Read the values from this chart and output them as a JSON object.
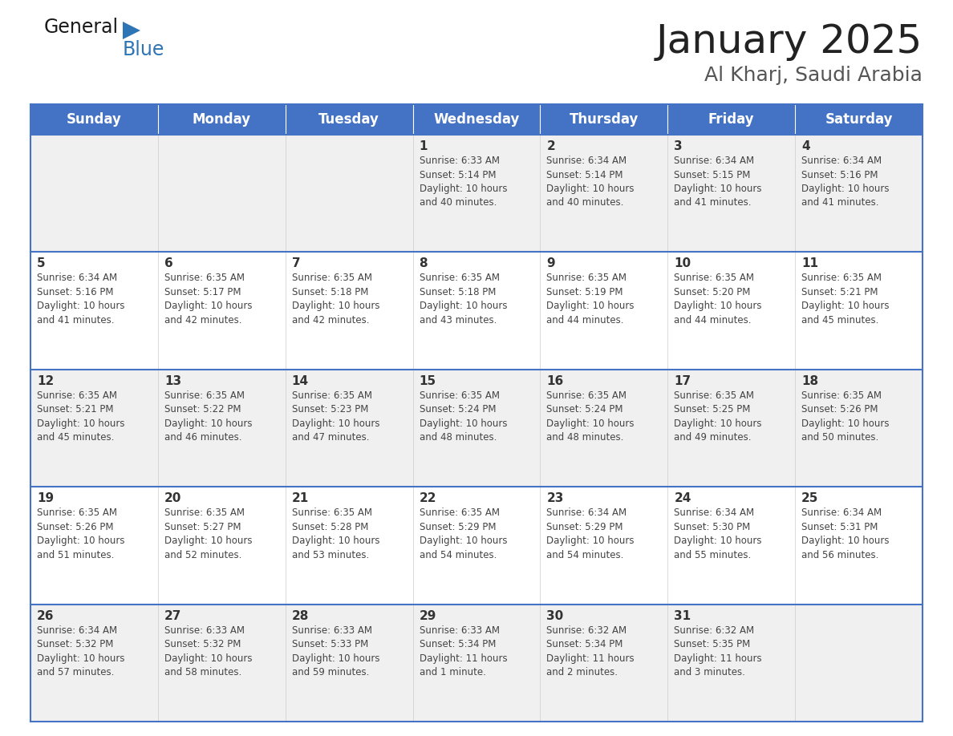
{
  "title": "January 2025",
  "subtitle": "Al Kharj, Saudi Arabia",
  "header_bg_color": "#4472C4",
  "header_text_color": "#FFFFFF",
  "day_names": [
    "Sunday",
    "Monday",
    "Tuesday",
    "Wednesday",
    "Thursday",
    "Friday",
    "Saturday"
  ],
  "title_color": "#222222",
  "subtitle_color": "#555555",
  "row_colors": [
    "#F0F0F0",
    "#FFFFFF"
  ],
  "cell_border_color": "#4472C4",
  "day_number_color": "#333333",
  "cell_text_color": "#444444",
  "logo_general_color": "#1a1a1a",
  "logo_blue_color": "#2E75B6",
  "weeks": [
    [
      {
        "day": null,
        "text": ""
      },
      {
        "day": null,
        "text": ""
      },
      {
        "day": null,
        "text": ""
      },
      {
        "day": 1,
        "text": "Sunrise: 6:33 AM\nSunset: 5:14 PM\nDaylight: 10 hours\nand 40 minutes."
      },
      {
        "day": 2,
        "text": "Sunrise: 6:34 AM\nSunset: 5:14 PM\nDaylight: 10 hours\nand 40 minutes."
      },
      {
        "day": 3,
        "text": "Sunrise: 6:34 AM\nSunset: 5:15 PM\nDaylight: 10 hours\nand 41 minutes."
      },
      {
        "day": 4,
        "text": "Sunrise: 6:34 AM\nSunset: 5:16 PM\nDaylight: 10 hours\nand 41 minutes."
      }
    ],
    [
      {
        "day": 5,
        "text": "Sunrise: 6:34 AM\nSunset: 5:16 PM\nDaylight: 10 hours\nand 41 minutes."
      },
      {
        "day": 6,
        "text": "Sunrise: 6:35 AM\nSunset: 5:17 PM\nDaylight: 10 hours\nand 42 minutes."
      },
      {
        "day": 7,
        "text": "Sunrise: 6:35 AM\nSunset: 5:18 PM\nDaylight: 10 hours\nand 42 minutes."
      },
      {
        "day": 8,
        "text": "Sunrise: 6:35 AM\nSunset: 5:18 PM\nDaylight: 10 hours\nand 43 minutes."
      },
      {
        "day": 9,
        "text": "Sunrise: 6:35 AM\nSunset: 5:19 PM\nDaylight: 10 hours\nand 44 minutes."
      },
      {
        "day": 10,
        "text": "Sunrise: 6:35 AM\nSunset: 5:20 PM\nDaylight: 10 hours\nand 44 minutes."
      },
      {
        "day": 11,
        "text": "Sunrise: 6:35 AM\nSunset: 5:21 PM\nDaylight: 10 hours\nand 45 minutes."
      }
    ],
    [
      {
        "day": 12,
        "text": "Sunrise: 6:35 AM\nSunset: 5:21 PM\nDaylight: 10 hours\nand 45 minutes."
      },
      {
        "day": 13,
        "text": "Sunrise: 6:35 AM\nSunset: 5:22 PM\nDaylight: 10 hours\nand 46 minutes."
      },
      {
        "day": 14,
        "text": "Sunrise: 6:35 AM\nSunset: 5:23 PM\nDaylight: 10 hours\nand 47 minutes."
      },
      {
        "day": 15,
        "text": "Sunrise: 6:35 AM\nSunset: 5:24 PM\nDaylight: 10 hours\nand 48 minutes."
      },
      {
        "day": 16,
        "text": "Sunrise: 6:35 AM\nSunset: 5:24 PM\nDaylight: 10 hours\nand 48 minutes."
      },
      {
        "day": 17,
        "text": "Sunrise: 6:35 AM\nSunset: 5:25 PM\nDaylight: 10 hours\nand 49 minutes."
      },
      {
        "day": 18,
        "text": "Sunrise: 6:35 AM\nSunset: 5:26 PM\nDaylight: 10 hours\nand 50 minutes."
      }
    ],
    [
      {
        "day": 19,
        "text": "Sunrise: 6:35 AM\nSunset: 5:26 PM\nDaylight: 10 hours\nand 51 minutes."
      },
      {
        "day": 20,
        "text": "Sunrise: 6:35 AM\nSunset: 5:27 PM\nDaylight: 10 hours\nand 52 minutes."
      },
      {
        "day": 21,
        "text": "Sunrise: 6:35 AM\nSunset: 5:28 PM\nDaylight: 10 hours\nand 53 minutes."
      },
      {
        "day": 22,
        "text": "Sunrise: 6:35 AM\nSunset: 5:29 PM\nDaylight: 10 hours\nand 54 minutes."
      },
      {
        "day": 23,
        "text": "Sunrise: 6:34 AM\nSunset: 5:29 PM\nDaylight: 10 hours\nand 54 minutes."
      },
      {
        "day": 24,
        "text": "Sunrise: 6:34 AM\nSunset: 5:30 PM\nDaylight: 10 hours\nand 55 minutes."
      },
      {
        "day": 25,
        "text": "Sunrise: 6:34 AM\nSunset: 5:31 PM\nDaylight: 10 hours\nand 56 minutes."
      }
    ],
    [
      {
        "day": 26,
        "text": "Sunrise: 6:34 AM\nSunset: 5:32 PM\nDaylight: 10 hours\nand 57 minutes."
      },
      {
        "day": 27,
        "text": "Sunrise: 6:33 AM\nSunset: 5:32 PM\nDaylight: 10 hours\nand 58 minutes."
      },
      {
        "day": 28,
        "text": "Sunrise: 6:33 AM\nSunset: 5:33 PM\nDaylight: 10 hours\nand 59 minutes."
      },
      {
        "day": 29,
        "text": "Sunrise: 6:33 AM\nSunset: 5:34 PM\nDaylight: 11 hours\nand 1 minute."
      },
      {
        "day": 30,
        "text": "Sunrise: 6:32 AM\nSunset: 5:34 PM\nDaylight: 11 hours\nand 2 minutes."
      },
      {
        "day": 31,
        "text": "Sunrise: 6:32 AM\nSunset: 5:35 PM\nDaylight: 11 hours\nand 3 minutes."
      },
      {
        "day": null,
        "text": ""
      }
    ]
  ]
}
